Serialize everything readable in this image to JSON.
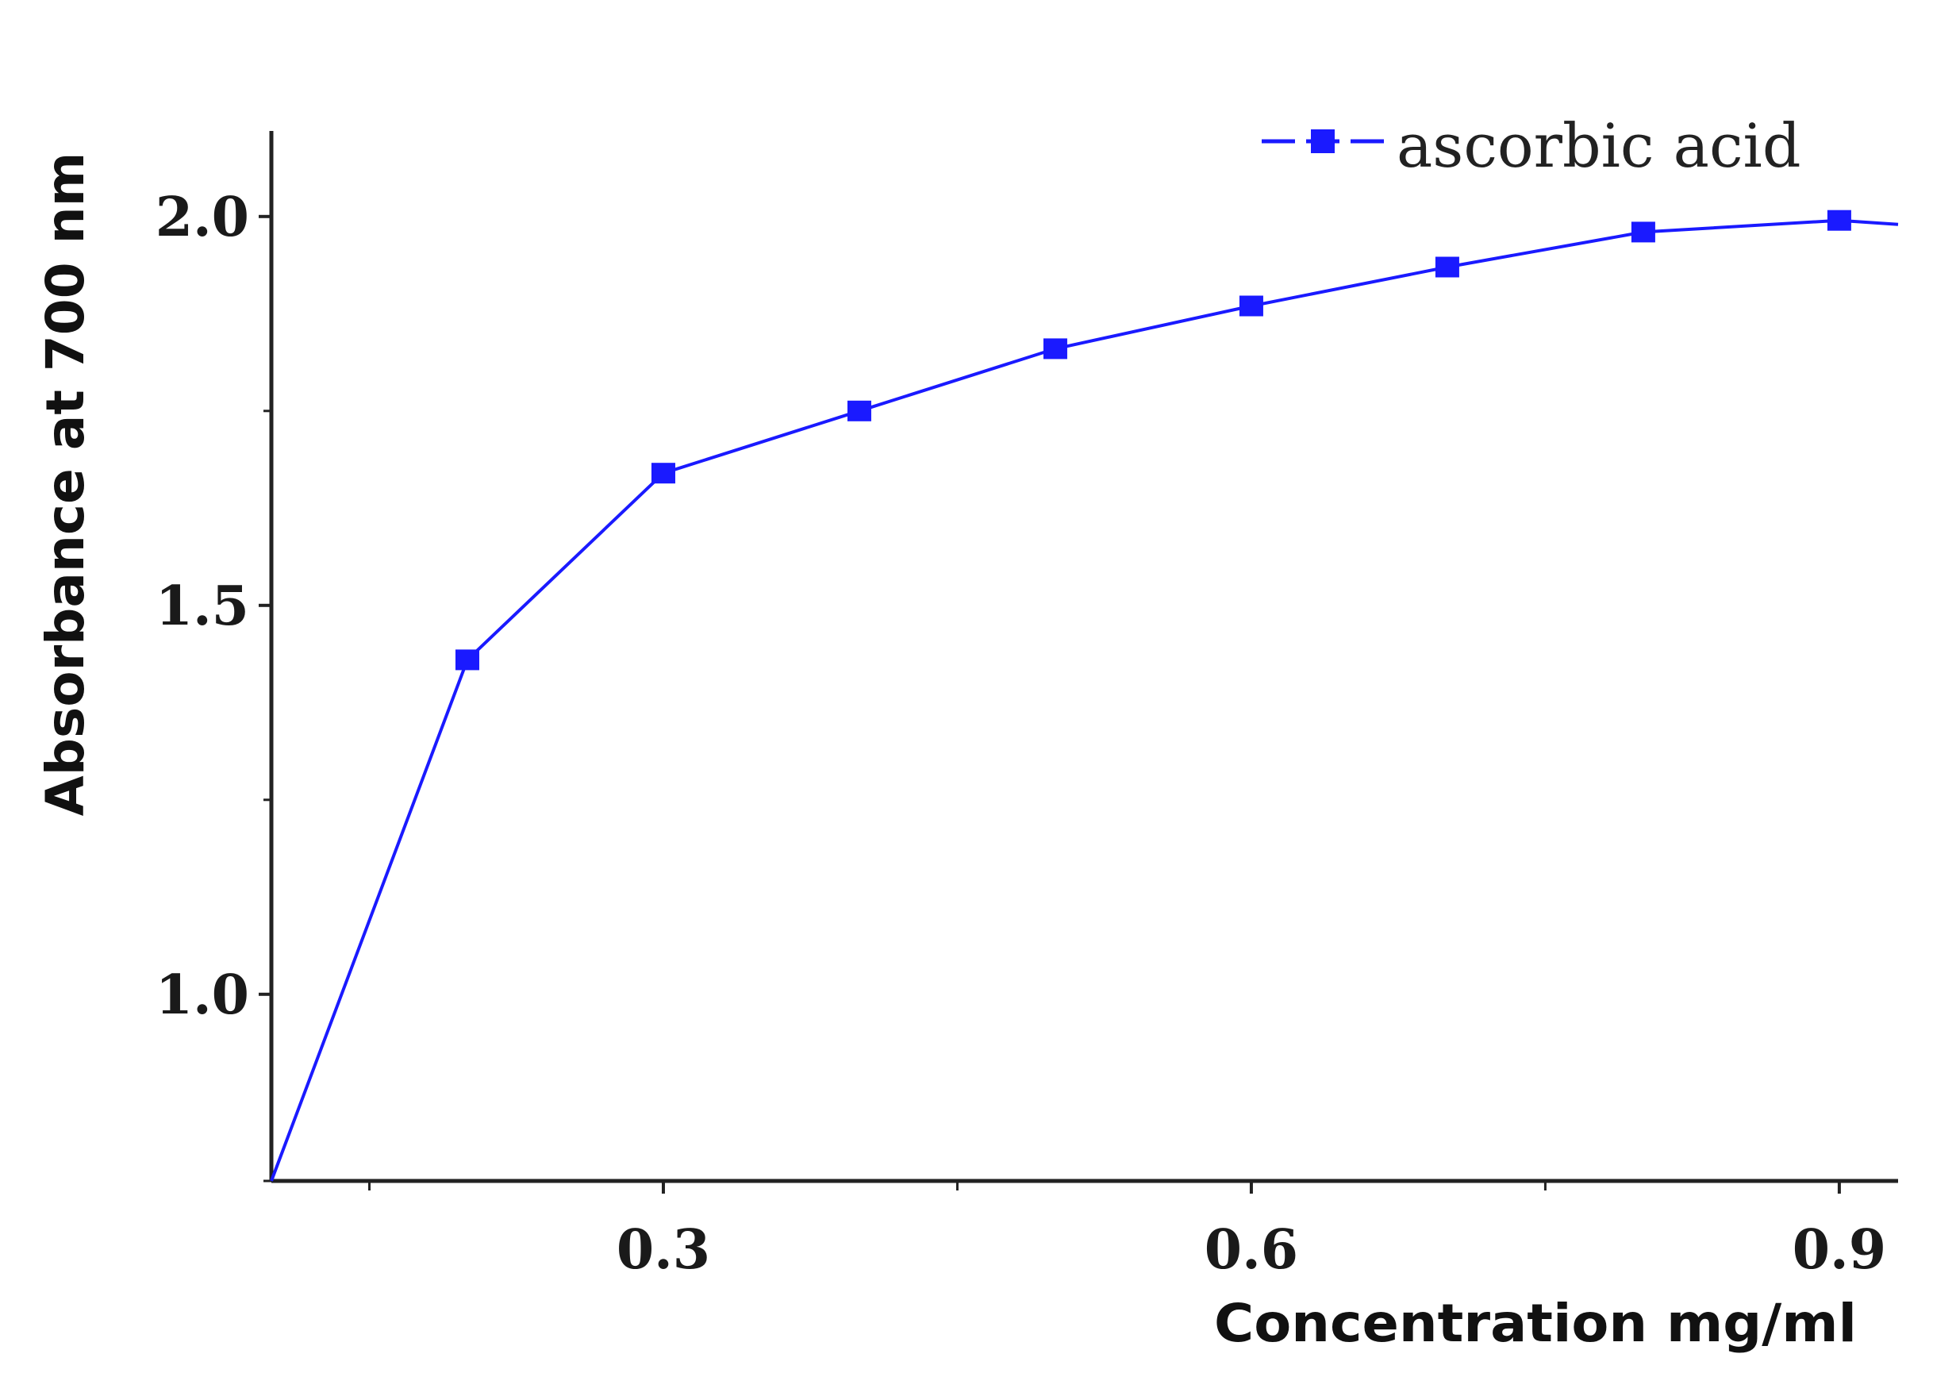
{
  "chart_data": {
    "type": "line",
    "title": "",
    "xlabel": "Concentration mg/ml",
    "ylabel": "Absorbance at 700 nm",
    "xlim": [
      0.1,
      0.93
    ],
    "ylim": [
      0.76,
      2.11
    ],
    "x_ticks": [
      {
        "value": 0.3,
        "label": "0.3"
      },
      {
        "value": 0.6,
        "label": "0.6"
      },
      {
        "value": 0.9,
        "label": "0.9"
      }
    ],
    "x_minor_ticks": [
      0.15,
      0.45,
      0.75
    ],
    "y_ticks": [
      {
        "value": 1.0,
        "label": "1.0"
      },
      {
        "value": 1.5,
        "label": "1.5"
      },
      {
        "value": 2.0,
        "label": "2.0"
      }
    ],
    "y_minor_ticks": [
      1.25,
      1.75
    ],
    "grid": false,
    "legend_position": "top-right",
    "series": [
      {
        "name": "ascorbic acid",
        "color": "#1a1aff",
        "marker": "square",
        "x": [
          0.1,
          0.2,
          0.3,
          0.4,
          0.5,
          0.6,
          0.7,
          0.8,
          0.9
        ],
        "y": [
          0.76,
          1.43,
          1.67,
          1.75,
          1.83,
          1.885,
          1.935,
          1.98,
          1.995
        ]
      }
    ]
  }
}
